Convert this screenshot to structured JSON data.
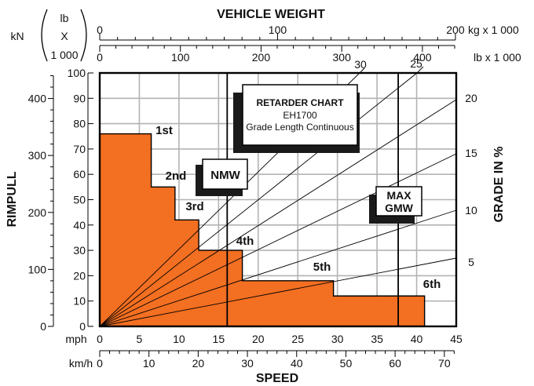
{
  "chart_data": {
    "type": "line",
    "title": "VEHICLE WEIGHT",
    "ylabel_left": "RIMPULL",
    "ylabel_right": "GRADE IN %",
    "xlabel": "SPEED",
    "weight_units": {
      "kn": "kN",
      "lb": "lb",
      "x": "X",
      "thousand": "1 000"
    },
    "weight_kg_label": "kg x 1 000",
    "weight_lb_label": "lb x 1 000",
    "unit_mph": "mph",
    "unit_kmh": "km/h",
    "kg_ticks": [
      "0",
      "100",
      "200"
    ],
    "lb_ticks": [
      "0",
      "100",
      "200",
      "300",
      "400"
    ],
    "rimpull_lb_ticks": [
      "0",
      "10",
      "20",
      "30",
      "40",
      "50",
      "60",
      "70",
      "80",
      "90",
      "100"
    ],
    "rimpull_kn_ticks": [
      "0",
      "100",
      "200",
      "300",
      "400"
    ],
    "mph_ticks": [
      "0",
      "5",
      "10",
      "15",
      "20",
      "25",
      "30",
      "35",
      "40",
      "45"
    ],
    "kmh_ticks": [
      "0",
      "10",
      "20",
      "30",
      "40",
      "50",
      "60",
      "70"
    ],
    "grade_labels": [
      "5",
      "10",
      "15",
      "20",
      "25",
      "30"
    ],
    "xlim_mph": [
      0,
      45
    ],
    "ylim_rimpull_lb_x1000": [
      0,
      100
    ],
    "grid": true,
    "gears": [
      {
        "name": "1st",
        "mph_end": 6.5,
        "rimpull": 76
      },
      {
        "name": "2nd",
        "mph_end": 9.5,
        "rimpull": 55
      },
      {
        "name": "3rd",
        "mph_end": 12.5,
        "rimpull": 42
      },
      {
        "name": "4th",
        "mph_end": 18,
        "rimpull": 30
      },
      {
        "name": "5th",
        "mph_end": 29.5,
        "rimpull": 18
      },
      {
        "name": "6th",
        "mph_end": 41,
        "rimpull": 12
      }
    ],
    "markers": [
      {
        "name": "NMW",
        "lb_x1000": 158
      },
      {
        "name": "MAX GMW",
        "lb_x1000": 370
      }
    ],
    "info_box": {
      "title": "RETARDER CHART",
      "model": "EH1700",
      "note": "Grade Length Continuous"
    },
    "colors": {
      "fill": "#f36f21",
      "grid": "#b3b3b3",
      "line": "#000000"
    }
  }
}
